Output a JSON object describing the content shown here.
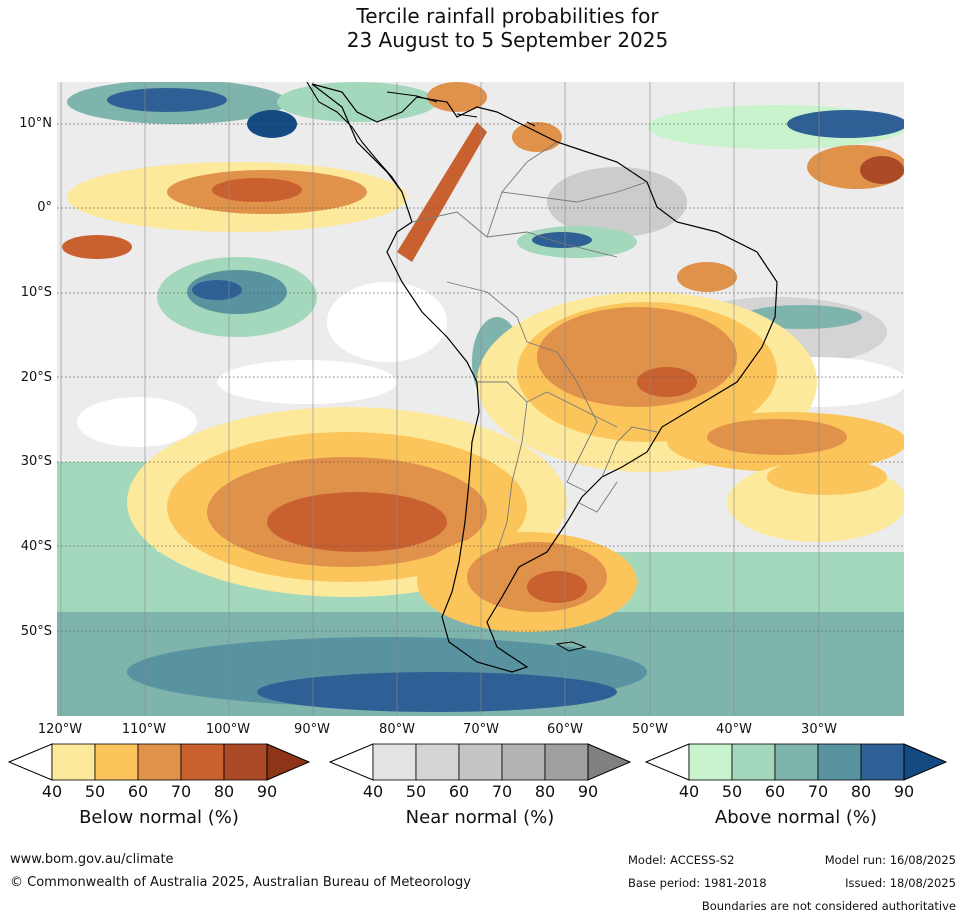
{
  "title_line1": "Tercile rainfall probabilities for",
  "title_line2": "23 August to 5 September 2025",
  "map": {
    "latitude_labels": [
      "10°N",
      "0°",
      "10°S",
      "20°S",
      "30°S",
      "40°S",
      "50°S"
    ],
    "longitude_labels": [
      "120°W",
      "110°W",
      "100°W",
      "90°W",
      "80°W",
      "70°W",
      "60°W",
      "50°W",
      "40°W",
      "30°W"
    ],
    "colors": {
      "below": [
        "#fde99b",
        "#fbc55c",
        "#e0914a",
        "#c96030",
        "#ab4a26",
        "#8e3418"
      ],
      "near": [
        "#e3e3e3",
        "#d4d4d4",
        "#c5c5c5",
        "#b3b3b3",
        "#a0a0a0",
        "#808080"
      ],
      "above": [
        "#c8f3cc",
        "#a4d8bc",
        "#7fb4ad",
        "#5a93a0",
        "#2f6095",
        "#134a82"
      ]
    }
  },
  "legends": [
    {
      "title": "Below normal (%)",
      "ticks": [
        "40",
        "50",
        "60",
        "70",
        "80",
        "90"
      ]
    },
    {
      "title": "Near normal (%)",
      "ticks": [
        "40",
        "50",
        "60",
        "70",
        "80",
        "90"
      ]
    },
    {
      "title": "Above normal (%)",
      "ticks": [
        "40",
        "50",
        "60",
        "70",
        "80",
        "90"
      ]
    }
  ],
  "footer": {
    "website": "www.bom.gov.au/climate",
    "copyright": "© Commonwealth of Australia 2025, Australian Bureau of Meteorology",
    "model": "Model: ACCESS-S2",
    "base_period": "Base period: 1981-2018",
    "model_run": "Model run: 16/08/2025",
    "issued": "Issued: 18/08/2025",
    "disclaimer": "Boundaries are not considered authoritative"
  }
}
